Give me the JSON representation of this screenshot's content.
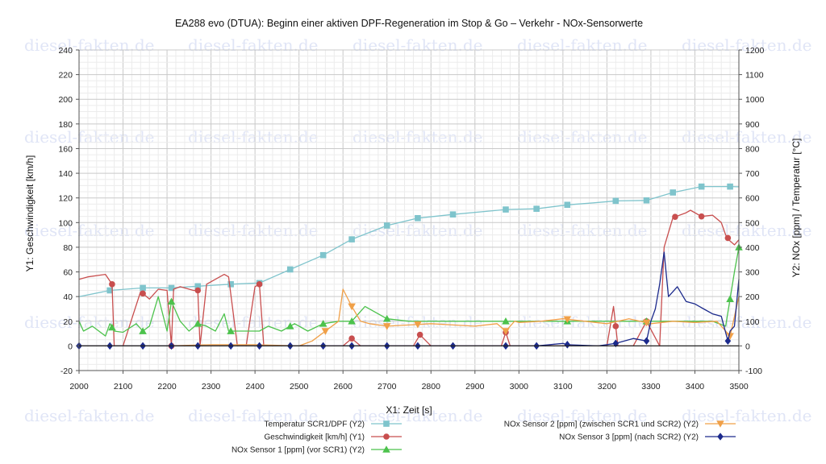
{
  "chart_data": {
    "type": "line",
    "title": "EA288 evo (DTUA): Beginn einer aktiven DPF-Regeneration im Stop & Go – Verkehr - NOx-Sensorwerte",
    "xlabel": "X1: Zeit [s]",
    "ylabel_left": "Y1: Geschwindigkeit [km/h]",
    "ylabel_right": "Y2: NOx [ppm] / Temperatur [°C]",
    "xlim": [
      2000,
      3500
    ],
    "ylim_left": [
      -20,
      240
    ],
    "ylim_right": [
      -100,
      1200
    ],
    "x_ticks": [
      2000,
      2100,
      2200,
      2300,
      2400,
      2500,
      2600,
      2700,
      2800,
      2900,
      3000,
      3100,
      3200,
      3300,
      3400,
      3500
    ],
    "y_left_ticks": [
      -20,
      0,
      20,
      40,
      60,
      80,
      100,
      120,
      140,
      160,
      180,
      200,
      220,
      240
    ],
    "y_right_ticks": [
      -100,
      0,
      100,
      200,
      300,
      400,
      500,
      600,
      700,
      800,
      900,
      1000,
      1100,
      1200
    ],
    "grid": true,
    "legend_position": "bottom",
    "watermark": "diesel-fakten.de",
    "series": [
      {
        "name": "Temperatur SCR1/DPF (Y2)",
        "axis": "Y2",
        "color": "#7fc4cc",
        "marker": "square",
        "x": [
          2000,
          2070,
          2145,
          2210,
          2270,
          2345,
          2410,
          2480,
          2555,
          2620,
          2700,
          2770,
          2850,
          2970,
          3040,
          3110,
          3170,
          3220,
          3290,
          3350,
          3415,
          3480,
          3500
        ],
        "values": [
          200,
          225,
          235,
          235,
          242,
          250,
          255,
          310,
          368,
          432,
          488,
          518,
          533,
          553,
          556,
          572,
          580,
          588,
          590,
          622,
          646,
          646,
          645
        ]
      },
      {
        "name": "Geschwindigkeit [km/h] (Y1)",
        "axis": "Y1",
        "color": "#c84e4e",
        "marker": "circle",
        "x": [
          2000,
          2020,
          2060,
          2075,
          2080,
          2100,
          2140,
          2160,
          2180,
          2200,
          2210,
          2215,
          2230,
          2260,
          2270,
          2275,
          2290,
          2330,
          2340,
          2360,
          2380,
          2400,
          2410,
          2420,
          2440,
          2460,
          2500,
          2560,
          2600,
          2620,
          2640,
          2700,
          2760,
          2775,
          2800,
          2900,
          2960,
          2970,
          2980,
          3050,
          3110,
          3200,
          3215,
          3225,
          3260,
          3290,
          3320,
          3330,
          3350,
          3380,
          3390,
          3415,
          3440,
          3460,
          3470,
          3480,
          3490,
          3500
        ],
        "values": [
          54,
          56,
          58,
          50,
          0,
          0,
          44,
          38,
          46,
          45,
          0,
          46,
          48,
          45,
          45,
          0,
          50,
          58,
          56,
          0,
          0,
          48,
          50,
          0,
          0,
          0,
          0,
          0,
          0,
          6,
          0,
          0,
          0,
          9,
          0,
          0,
          0,
          11,
          0,
          0,
          0,
          0,
          32,
          0,
          0,
          20,
          0,
          80,
          104,
          108,
          110,
          105,
          106,
          100,
          90,
          85,
          82,
          86
        ]
      },
      {
        "name": "NOx Sensor 1 [ppm] (vor SCR1) (Y2)",
        "axis": "Y2",
        "color": "#4cc24c",
        "marker": "triangle-up",
        "x": [
          2000,
          2010,
          2030,
          2060,
          2070,
          2080,
          2100,
          2130,
          2145,
          2160,
          2180,
          2200,
          2210,
          2230,
          2250,
          2270,
          2290,
          2310,
          2330,
          2340,
          2360,
          2380,
          2400,
          2410,
          2430,
          2460,
          2490,
          2520,
          2555,
          2590,
          2620,
          2650,
          2700,
          2750,
          2800,
          2850,
          2900,
          2950,
          2970,
          3000,
          3050,
          3100,
          3110,
          3150,
          3200,
          3250,
          3290,
          3310,
          3330,
          3360,
          3400,
          3440,
          3470,
          3490,
          3500
        ],
        "values": [
          100,
          60,
          80,
          40,
          90,
          60,
          55,
          90,
          60,
          80,
          200,
          60,
          180,
          100,
          60,
          90,
          80,
          60,
          130,
          60,
          60,
          60,
          60,
          60,
          80,
          60,
          90,
          60,
          90,
          100,
          100,
          160,
          110,
          100,
          100,
          100,
          100,
          100,
          100,
          100,
          100,
          100,
          100,
          100,
          100,
          100,
          100,
          100,
          100,
          100,
          100,
          100,
          80,
          300,
          400
        ]
      },
      {
        "name": "NOx Sensor 2 [ppm] (zwischen SCR1 und SCR2) (Y2)",
        "axis": "Y2",
        "color": "#f0a048",
        "marker": "triangle-down",
        "x": [
          2000,
          2100,
          2200,
          2300,
          2400,
          2500,
          2530,
          2560,
          2590,
          2600,
          2620,
          2640,
          2660,
          2700,
          2750,
          2800,
          2850,
          2900,
          2950,
          2970,
          2990,
          3000,
          3050,
          3100,
          3150,
          3200,
          3250,
          3300,
          3350,
          3400,
          3450,
          3480,
          3500
        ],
        "values": [
          0,
          0,
          0,
          5,
          5,
          0,
          20,
          60,
          100,
          230,
          160,
          100,
          90,
          80,
          85,
          90,
          85,
          80,
          90,
          60,
          100,
          95,
          100,
          110,
          100,
          90,
          110,
          90,
          100,
          95,
          100,
          40,
          200
        ]
      },
      {
        "name": "NOx Sensor 3 [ppm] (nach SCR2) (Y2)",
        "axis": "Y2",
        "color": "#1c2a8c",
        "marker": "diamond",
        "x": [
          2000,
          2070,
          2145,
          2210,
          2270,
          2345,
          2410,
          2480,
          2555,
          2620,
          2700,
          2770,
          2850,
          2970,
          3040,
          3100,
          3110,
          3180,
          3220,
          3260,
          3290,
          3300,
          3310,
          3320,
          3330,
          3340,
          3360,
          3380,
          3400,
          3420,
          3440,
          3460,
          3475,
          3480,
          3490,
          3500
        ],
        "values": [
          0,
          0,
          0,
          0,
          0,
          0,
          0,
          0,
          0,
          0,
          0,
          0,
          0,
          0,
          0,
          10,
          5,
          0,
          10,
          30,
          20,
          100,
          150,
          250,
          380,
          200,
          240,
          180,
          170,
          150,
          130,
          120,
          20,
          60,
          80,
          270
        ]
      }
    ],
    "marker_x": {
      "Temperatur SCR1/DPF (Y2)": [
        2070,
        2145,
        2210,
        2270,
        2345,
        2410,
        2480,
        2555,
        2620,
        2700,
        2770,
        2850,
        2970,
        3040,
        3110,
        3220,
        3290,
        3350,
        3415,
        3480
      ],
      "Geschwindigkeit [km/h] (Y1)": [
        2075,
        2145,
        2210,
        2270,
        2410,
        2620,
        2775,
        2970,
        3220,
        3290,
        3355,
        3415,
        3475
      ],
      "NOx Sensor 1 [ppm] (vor SCR1) (Y2)": [
        2075,
        2145,
        2210,
        2270,
        2345,
        2480,
        2555,
        2620,
        2700,
        2970,
        3110,
        3290,
        3480,
        3500
      ],
      "NOx Sensor 2 [ppm] (zwischen SCR1 und SCR2) (Y2)": [
        2560,
        2620,
        2700,
        2770,
        2970,
        3110,
        3290,
        3480
      ],
      "NOx Sensor 3 [ppm] (nach SCR2) (Y2)": [
        2000,
        2070,
        2145,
        2210,
        2270,
        2345,
        2410,
        2480,
        2555,
        2620,
        2700,
        2770,
        2850,
        2970,
        3040,
        3110,
        3220,
        3290,
        3475
      ]
    }
  }
}
